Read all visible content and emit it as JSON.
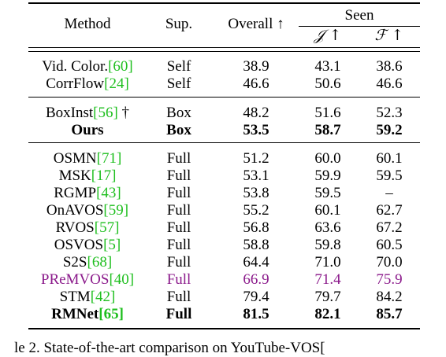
{
  "table": {
    "headers": {
      "method": "Method",
      "sup": "Sup.",
      "overall": "Overall ↑",
      "seen": "Seen",
      "j": "𝒥 ↑",
      "f": "ℱ ↑"
    },
    "rows": [
      {
        "method": "Vid. Color.",
        "ref": "[60]",
        "dagger": "",
        "sup": "Self",
        "overall": "38.9",
        "j": "43.1",
        "f": "38.6",
        "bold": false,
        "purple": false
      },
      {
        "method": "CorrFlow",
        "ref": "[24]",
        "dagger": "",
        "sup": "Self",
        "overall": "46.6",
        "j": "50.6",
        "f": "46.6",
        "bold": false,
        "purple": false
      },
      {
        "method": "BoxInst",
        "ref": "[56]",
        "dagger": " †",
        "sup": "Box",
        "overall": "48.2",
        "j": "51.6",
        "f": "52.3",
        "bold": false,
        "purple": false
      },
      {
        "method": "Ours",
        "ref": "",
        "dagger": "",
        "sup": "Box",
        "overall": "53.5",
        "j": "58.7",
        "f": "59.2",
        "bold": true,
        "purple": false
      },
      {
        "method": "OSMN",
        "ref": "[71]",
        "dagger": "",
        "sup": "Full",
        "overall": "51.2",
        "j": "60.0",
        "f": "60.1",
        "bold": false,
        "purple": false
      },
      {
        "method": "MSK",
        "ref": "[17]",
        "dagger": "",
        "sup": "Full",
        "overall": "53.1",
        "j": "59.9",
        "f": "59.5",
        "bold": false,
        "purple": false
      },
      {
        "method": "RGMP",
        "ref": "[43]",
        "dagger": "",
        "sup": "Full",
        "overall": "53.8",
        "j": "59.5",
        "f": "–",
        "bold": false,
        "purple": false
      },
      {
        "method": "OnAVOS",
        "ref": "[59]",
        "dagger": "",
        "sup": "Full",
        "overall": "55.2",
        "j": "60.1",
        "f": "62.7",
        "bold": false,
        "purple": false
      },
      {
        "method": "RVOS",
        "ref": "[57]",
        "dagger": "",
        "sup": "Full",
        "overall": "56.8",
        "j": "63.6",
        "f": "67.2",
        "bold": false,
        "purple": false
      },
      {
        "method": "OSVOS",
        "ref": "[5]",
        "dagger": "",
        "sup": "Full",
        "overall": "58.8",
        "j": "59.8",
        "f": "60.5",
        "bold": false,
        "purple": false
      },
      {
        "method": "S2S",
        "ref": "[68]",
        "dagger": "",
        "sup": "Full",
        "overall": "64.4",
        "j": "71.0",
        "f": "70.0",
        "bold": false,
        "purple": false
      },
      {
        "method": "PReMVOS",
        "ref": "[40]",
        "dagger": "",
        "sup": "Full",
        "overall": "66.9",
        "j": "71.4",
        "f": "75.9",
        "bold": false,
        "purple": true
      },
      {
        "method": "STM",
        "ref": "[42]",
        "dagger": "",
        "sup": "Full",
        "overall": "79.4",
        "j": "79.7",
        "f": "84.2",
        "bold": false,
        "purple": false
      },
      {
        "method": "RMNet",
        "ref": "[65]",
        "dagger": "",
        "sup": "Full",
        "overall": "81.5",
        "j": "82.1",
        "f": "85.7",
        "bold": true,
        "purple": false
      }
    ]
  },
  "caption": "le 2. State-of-the-art comparison on YouTube-VOS[",
  "colors": {
    "ref": "#1fbf1f",
    "highlight": "#8b1a8b"
  }
}
